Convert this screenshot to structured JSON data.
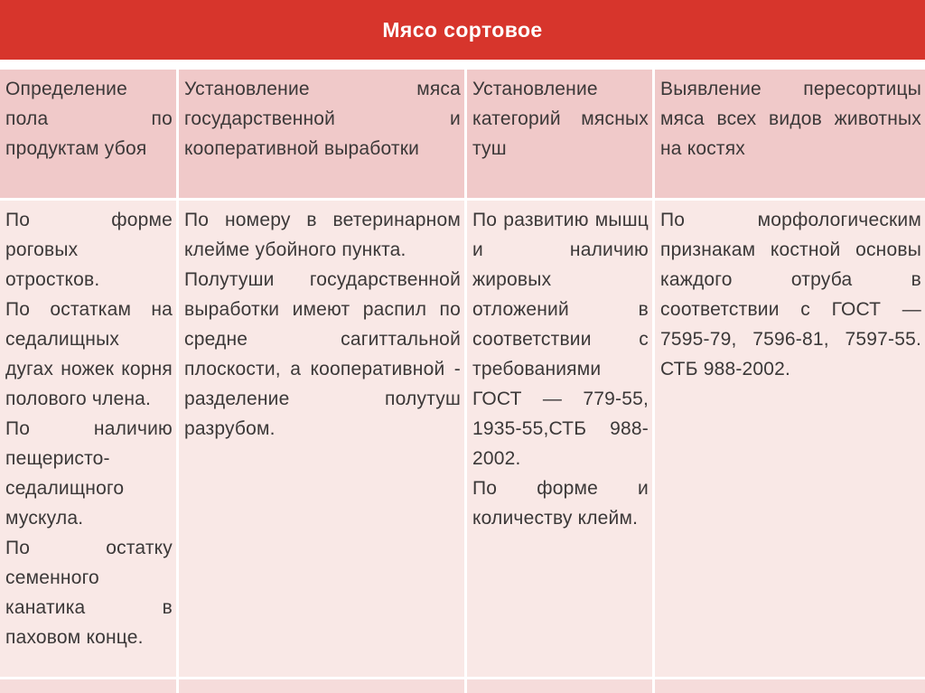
{
  "slide": {
    "title": "Мясо сортовое"
  },
  "colors": {
    "accent_red": "#d7352c",
    "header_row_pink": "#f0c9c9",
    "body_row_pink": "#f9e8e6",
    "band_row_pink": "#f6dcdb",
    "text": "#3b3838",
    "title_text": "#ffffff"
  },
  "table": {
    "headers": [
      "Определение пола по продуктам убоя",
      "Установление мяса государственной и кооперативной выработки",
      "Установление категорий мясных туш",
      "Выявление пересортицы мяса всех видов животных на костях"
    ],
    "body": [
      {
        "paragraphs": [
          "По форме роговых отростков.",
          "По остаткам на седалищных дугах ножек корня полового члена.",
          "По наличию пещеристо-седалищного мускула.",
          "По остатку семенного канатика в паховом конце."
        ]
      },
      {
        "paragraphs": [
          "По номеру в ветеринарном клейме убойного пункта.",
          "Полутуши государственной выработки имеют распил по средне сагиттальной плоскости, а кооперативной - разделение полутуш разрубом."
        ]
      },
      {
        "paragraphs": [
          "По развитию мышц и наличию жировых отложений в соответствии с требованиями ГОСТ — 779-55, 1935-55,СТБ 988-2002.",
          "По форме и количеству клейм."
        ]
      },
      {
        "paragraphs": [
          "По морфологическим признакам костной основы каждого отруба в соответствии с ГОСТ — 7595-79, 7596-81, 7597-55. СТБ 988-2002."
        ]
      }
    ]
  }
}
